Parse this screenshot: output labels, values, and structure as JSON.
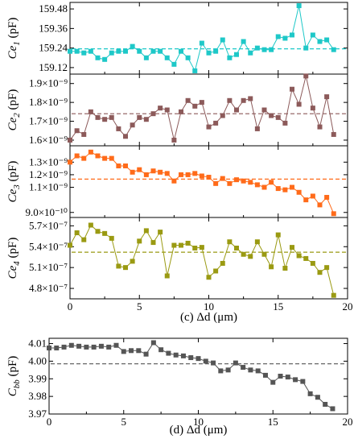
{
  "chart_data": [
    {
      "id": "ce1",
      "type": "line",
      "ylabel_main": "Ce",
      "ylabel_sub": "1",
      "ylabel_unit": " (pF)",
      "color": "#1ec8c8",
      "xlim": [
        0,
        20
      ],
      "ylim": [
        159.08,
        159.52
      ],
      "yticks": [
        159.12,
        159.24,
        159.36,
        159.48
      ],
      "ytick_labels": [
        "159.12",
        "159.24",
        "159.36",
        "159.48"
      ],
      "xticks": [
        0,
        5,
        10,
        15,
        20
      ],
      "xtick_labels": [
        "",
        "",
        "",
        "",
        ""
      ],
      "mean": 159.235,
      "x": [
        0,
        0.5,
        1,
        1.5,
        2,
        2.5,
        3,
        3.5,
        4,
        4.5,
        5,
        5.5,
        6,
        6.5,
        7,
        7.5,
        8,
        8.5,
        9,
        9.5,
        10,
        10.5,
        11,
        11.5,
        12,
        12.5,
        13,
        13.5,
        14,
        14.5,
        15,
        15.5,
        16,
        16.5,
        17,
        17.5,
        18,
        18.5,
        19
      ],
      "y": [
        159.22,
        159.22,
        159.21,
        159.22,
        159.18,
        159.17,
        159.21,
        159.22,
        159.22,
        159.25,
        159.22,
        159.18,
        159.22,
        159.22,
        159.18,
        159.14,
        159.22,
        159.18,
        159.1,
        159.27,
        159.21,
        159.22,
        159.29,
        159.18,
        159.2,
        159.28,
        159.21,
        159.24,
        159.23,
        159.23,
        159.31,
        159.3,
        159.32,
        159.5,
        159.24,
        159.32,
        159.28,
        159.29,
        159.23
      ]
    },
    {
      "id": "ce2",
      "type": "line",
      "ylabel_main": "Ce",
      "ylabel_sub": "2",
      "ylabel_unit": " (pF)",
      "color": "#8c5a5a",
      "xlim": [
        0,
        20
      ],
      "ylim": [
        1.57e-09,
        1.95e-09
      ],
      "yticks": [
        1.6e-09,
        1.7e-09,
        1.8e-09,
        1.9e-09
      ],
      "ytick_labels": [
        "1.6×10⁻⁹",
        "1.7×10⁻⁹",
        "1.8×10⁻⁹",
        "1.9×10⁻⁹"
      ],
      "xticks": [
        0,
        5,
        10,
        15,
        20
      ],
      "xtick_labels": [
        "",
        "",
        "",
        "",
        ""
      ],
      "mean": 1.74e-09,
      "x": [
        0,
        0.5,
        1,
        1.5,
        2,
        2.5,
        3,
        3.5,
        4,
        4.5,
        5,
        5.5,
        6,
        6.5,
        7,
        7.5,
        8,
        8.5,
        9,
        9.5,
        10,
        10.5,
        11,
        11.5,
        12,
        12.5,
        13,
        13.5,
        14,
        14.5,
        15,
        15.5,
        16,
        16.5,
        17,
        17.5,
        18,
        18.5,
        19
      ],
      "y": [
        1.6e-09,
        1.65e-09,
        1.63e-09,
        1.75e-09,
        1.72e-09,
        1.71e-09,
        1.72e-09,
        1.66e-09,
        1.62e-09,
        1.68e-09,
        1.72e-09,
        1.71e-09,
        1.74e-09,
        1.77e-09,
        1.76e-09,
        1.6e-09,
        1.75e-09,
        1.81e-09,
        1.78e-09,
        1.8e-09,
        1.67e-09,
        1.69e-09,
        1.73e-09,
        1.81e-09,
        1.76e-09,
        1.81e-09,
        1.82e-09,
        1.66e-09,
        1.76e-09,
        1.73e-09,
        1.72e-09,
        1.69e-09,
        1.87e-09,
        1.79e-09,
        1.94e-09,
        1.77e-09,
        1.67e-09,
        1.83e-09,
        1.63e-09
      ]
    },
    {
      "id": "ce3",
      "type": "line",
      "ylabel_main": "Ce",
      "ylabel_sub": "3",
      "ylabel_unit": " (pF)",
      "color": "#ff6b1a",
      "xlim": [
        0,
        20
      ],
      "ylim": [
        8.6e-10,
        1.43e-09
      ],
      "yticks": [
        9e-10,
        1.1e-09,
        1.2e-09,
        1.3e-09
      ],
      "ytick_labels": [
        "9.0×10⁻¹⁰",
        "1.1×10⁻⁹",
        "1.2×10⁻⁹",
        "1.3×10⁻⁹"
      ],
      "xticks": [
        0,
        5,
        10,
        15,
        20
      ],
      "xtick_labels": [
        "",
        "",
        "",
        "",
        ""
      ],
      "mean": 1.165e-09,
      "x": [
        0,
        0.5,
        1,
        1.5,
        2,
        2.5,
        3,
        3.5,
        4,
        4.5,
        5,
        5.5,
        6,
        6.5,
        7,
        7.5,
        8,
        8.5,
        9,
        9.5,
        10,
        10.5,
        11,
        11.5,
        12,
        12.5,
        13,
        13.5,
        14,
        14.5,
        15,
        15.5,
        16,
        16.5,
        17,
        17.5,
        18,
        18.5,
        19
      ],
      "y": [
        1.3e-09,
        1.35e-09,
        1.33e-09,
        1.38e-09,
        1.35e-09,
        1.33e-09,
        1.33e-09,
        1.27e-09,
        1.27e-09,
        1.22e-09,
        1.24e-09,
        1.2e-09,
        1.23e-09,
        1.22e-09,
        1.21e-09,
        1.15e-09,
        1.2e-09,
        1.2e-09,
        1.21e-09,
        1.19e-09,
        1.18e-09,
        1.13e-09,
        1.17e-09,
        1.13e-09,
        1.16e-09,
        1.15e-09,
        1.14e-09,
        1.12e-09,
        1.1e-09,
        1.14e-09,
        1.09e-09,
        1.08e-09,
        1.1e-09,
        1.06e-09,
        1e-09,
        1.03e-09,
        9.6e-10,
        1.02e-09,
        8.9e-10
      ]
    },
    {
      "id": "ce4",
      "type": "line",
      "ylabel_main": "Ce",
      "ylabel_sub": "4",
      "ylabel_unit": " (pF)",
      "color": "#9a9a12",
      "xlim": [
        0,
        20
      ],
      "ylim": [
        4.65e-07,
        5.82e-07
      ],
      "yticks": [
        4.8e-07,
        5.1e-07,
        5.4e-07,
        5.7e-07
      ],
      "ytick_labels": [
        "4.8×10⁻⁷",
        "5.1×10⁻⁷",
        "5.4×10⁻⁷",
        "5.7×10⁻⁷"
      ],
      "xticks": [
        0,
        5,
        10,
        15,
        20
      ],
      "xtick_labels": [
        "0",
        "5",
        "10",
        "15",
        "20"
      ],
      "xlabel": "(c)  Δd (μm)",
      "mean": 5.32e-07,
      "x": [
        0,
        0.5,
        1,
        1.5,
        2,
        2.5,
        3,
        3.5,
        4,
        4.5,
        5,
        5.5,
        6,
        6.5,
        7,
        7.5,
        8,
        8.5,
        9,
        9.5,
        10,
        10.5,
        11,
        11.5,
        12,
        12.5,
        13,
        13.5,
        14,
        14.5,
        15,
        15.5,
        16,
        16.5,
        17,
        17.5,
        18,
        18.5,
        19
      ],
      "y": [
        5.42e-07,
        5.6e-07,
        5.5e-07,
        5.71e-07,
        5.62e-07,
        5.59e-07,
        5.52e-07,
        5.12e-07,
        5.1e-07,
        5.19e-07,
        5.48e-07,
        5.63e-07,
        5.46e-07,
        5.61e-07,
        4.98e-07,
        5.42e-07,
        5.42e-07,
        5.45e-07,
        5.38e-07,
        5.39e-07,
        4.96e-07,
        5.05e-07,
        5.16e-07,
        5.47e-07,
        5.38e-07,
        5.29e-07,
        5.26e-07,
        5.47e-07,
        5.29e-07,
        5.11e-07,
        5.57e-07,
        5.09e-07,
        5.39e-07,
        5.27e-07,
        5.23e-07,
        5.16e-07,
        5.03e-07,
        5.1e-07,
        4.7e-07
      ]
    },
    {
      "id": "cbb",
      "type": "line",
      "ylabel_main": "C",
      "ylabel_sub": "bb",
      "ylabel_unit": " (pF)",
      "color": "#555555",
      "xlim": [
        0,
        20
      ],
      "ylim": [
        3.97,
        4.013
      ],
      "yticks": [
        3.97,
        3.98,
        3.99,
        4.0,
        4.01
      ],
      "ytick_labels": [
        "3.97",
        "3.98",
        "3.99",
        "4.00",
        "4.01"
      ],
      "xticks": [
        0,
        5,
        10,
        15,
        20
      ],
      "xtick_labels": [
        "0",
        "5",
        "10",
        "15",
        "20"
      ],
      "xlabel": "(d) Δd (μm)",
      "mean": 3.9985,
      "x": [
        0,
        0.5,
        1,
        1.5,
        2,
        2.5,
        3,
        3.5,
        4,
        4.5,
        5,
        5.5,
        6,
        6.5,
        7,
        7.5,
        8,
        8.5,
        9,
        9.5,
        10,
        10.5,
        11,
        11.5,
        12,
        12.5,
        13,
        13.5,
        14,
        14.5,
        15,
        15.5,
        16,
        16.5,
        17,
        17.5,
        18,
        18.5,
        19
      ],
      "y": [
        4.0075,
        4.0075,
        4.008,
        4.009,
        4.0085,
        4.008,
        4.008,
        4.0085,
        4.008,
        4.009,
        4.0055,
        4.006,
        4.006,
        4.004,
        4.0105,
        4.0065,
        4.0045,
        4.0035,
        4.003,
        4.002,
        4.0015,
        4.0,
        3.999,
        3.9945,
        3.995,
        3.999,
        3.9965,
        3.995,
        3.9945,
        3.992,
        3.988,
        3.9915,
        3.991,
        3.9895,
        3.9885,
        3.9815,
        3.9795,
        3.9755,
        3.973
      ]
    }
  ]
}
